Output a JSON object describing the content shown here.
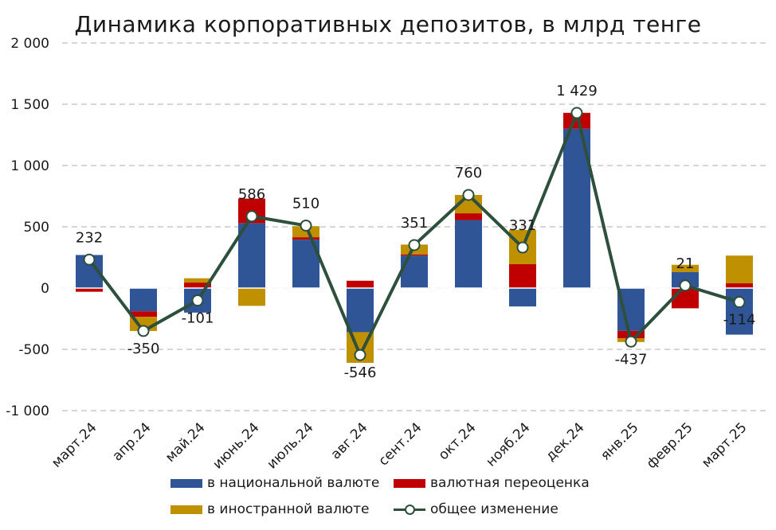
{
  "chart_data": {
    "type": "bar",
    "title": "Динамика корпоративных депозитов, в млрд тенге",
    "stacked": true,
    "categories": [
      "март.24",
      "апр.24",
      "май.24",
      "июнь.24",
      "июль.24",
      "авг.24",
      "сент.24",
      "окт.24",
      "нояб.24",
      "дек.24",
      "янв.25",
      "февр.25",
      "март.25"
    ],
    "series": [
      {
        "name": "в национальной валюте",
        "kind": "bar",
        "color": "#2f5597",
        "values": [
          270,
          -190,
          -200,
          530,
          395,
          -360,
          265,
          555,
          -150,
          1300,
          -350,
          130,
          -380
        ]
      },
      {
        "name": "валютная переоценка",
        "kind": "bar",
        "color": "#c00000",
        "values": [
          -30,
          -45,
          45,
          200,
          20,
          60,
          10,
          55,
          195,
          130,
          -60,
          -165,
          40
        ]
      },
      {
        "name": "в иностранной валюте",
        "kind": "bar",
        "color": "#bf9000",
        "values": [
          0,
          -115,
          35,
          -145,
          90,
          -250,
          80,
          150,
          280,
          0,
          -30,
          60,
          225
        ]
      },
      {
        "name": "общее изменение",
        "kind": "line",
        "color": "#2d4f3c",
        "values": [
          232,
          -350,
          -101,
          586,
          510,
          -546,
          351,
          760,
          331,
          1429,
          -437,
          21,
          -114
        ],
        "labels": [
          "232",
          "-350",
          "-101",
          "586",
          "510",
          "-546",
          "351",
          "760",
          "331",
          "1 429",
          "-437",
          "21",
          "-114"
        ]
      }
    ],
    "ylim": [
      -1000,
      2000
    ],
    "yticks": [
      2000,
      1500,
      1000,
      500,
      0,
      -500,
      -1000
    ],
    "ytick_labels": [
      "2 000",
      "1 500",
      "1 000",
      "500",
      "0",
      "-500",
      "-1 000"
    ],
    "grid": true,
    "legend_position": "bottom",
    "xlabel": "",
    "ylabel": ""
  }
}
